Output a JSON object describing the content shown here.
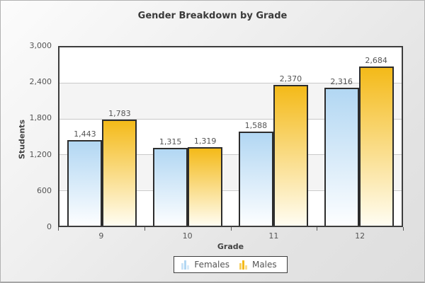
{
  "title": "Gender Breakdown by Grade",
  "chart_data": {
    "type": "bar",
    "subtype": "grouped-column",
    "title": "Gender Breakdown by Grade",
    "xlabel": "Grade",
    "ylabel": "Students",
    "categories": [
      "9",
      "10",
      "11",
      "12"
    ],
    "series": [
      {
        "name": "Females",
        "values": [
          1443,
          1315,
          1588,
          2316
        ]
      },
      {
        "name": "Males",
        "values": [
          1783,
          1319,
          2370,
          2684
        ]
      }
    ],
    "value_labels": {
      "Females": [
        "1,443",
        "1,315",
        "1,588",
        "2,316"
      ],
      "Males": [
        "1,783",
        "1,319",
        "2,370",
        "2,684"
      ]
    },
    "ylim": [
      0,
      3000
    ],
    "ytick_interval": 600,
    "ytick_labels_top_to_bottom": [
      "3,000",
      "2,400",
      "1,800",
      "1,200",
      "600",
      "0"
    ],
    "grid": "horizontal",
    "plot_bands": "alternating white / light-gray every 600",
    "legend_position": "bottom-center"
  },
  "colors": {
    "female_bar_top": "#b2d7f3",
    "female_bar_bottom": "#fdfeff",
    "male_bar_top": "#f4ba19",
    "male_bar_bottom": "#fffdf2",
    "bar_border": "#2d2d2d",
    "plot_border": "#3d3d3d",
    "band_gray": "#f4f4f4",
    "gridline": "#c9c9c9",
    "background_top": "#fcfcfc",
    "background_bottom": "#dedede",
    "text": "#555555",
    "title_text": "#3a3a3a"
  }
}
